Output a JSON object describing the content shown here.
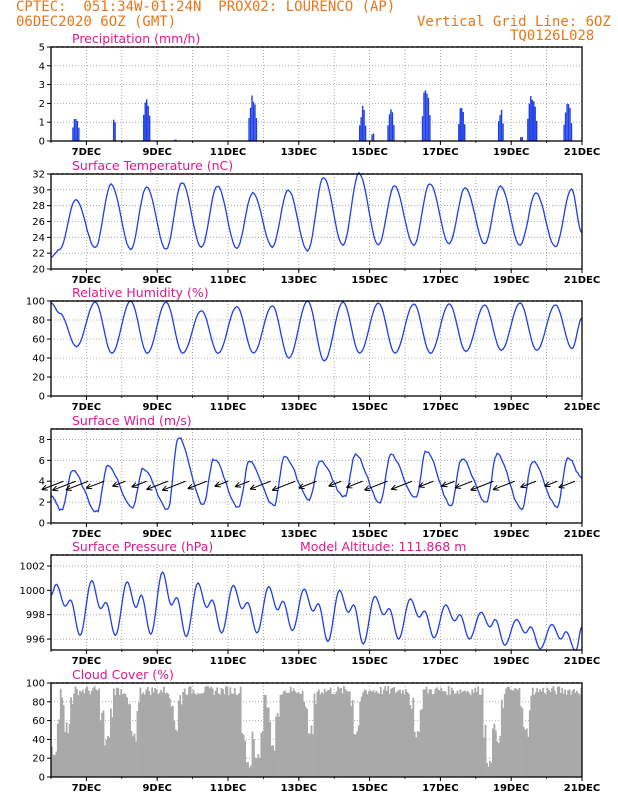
{
  "header": {
    "line1_left": "CPTEC:  051:34W-01:24N  PROX02: LOURENCO (AP)",
    "line2_left": "06DEC2020 6OZ (GMT)",
    "line2_right": "Vertical Grid Line: 6OZ",
    "line3_right": "TQ0126L028",
    "model_altitude": "Model Altitude: 111.868  m"
  },
  "colors": {
    "header": "#e8761a",
    "title": "#e0188c",
    "series": "#1f3fe6",
    "cloud": "#a9a9a9",
    "arrow": "#000000",
    "grid": "#9b9b9b"
  },
  "chart_data": [
    {
      "type": "bar",
      "title": "Precipitation (mm/h)",
      "x_range": [
        "06DEC2020 00Z",
        "21DEC2020 00Z"
      ],
      "x_ticks": [
        "7DEC",
        "9DEC",
        "11DEC",
        "13DEC",
        "15DEC",
        "17DEC",
        "19DEC",
        "21DEC"
      ],
      "ylim": [
        0,
        5
      ],
      "y_ticks": [
        0,
        1,
        2,
        3,
        4,
        5
      ],
      "grid": true,
      "events": [
        {
          "day": 0.7,
          "width": 0.2,
          "peak": 1.5
        },
        {
          "day": 1.8,
          "width": 0.1,
          "peak": 1.6
        },
        {
          "day": 2.7,
          "width": 0.2,
          "peak": 2.6
        },
        {
          "day": 3.5,
          "width": 0.05,
          "peak": 0.1
        },
        {
          "day": 5.7,
          "width": 0.25,
          "peak": 2.7
        },
        {
          "day": 8.8,
          "width": 0.2,
          "peak": 1.9
        },
        {
          "day": 9.1,
          "width": 0.1,
          "peak": 0.5
        },
        {
          "day": 9.6,
          "width": 0.2,
          "peak": 1.9
        },
        {
          "day": 10.6,
          "width": 0.25,
          "peak": 3.2
        },
        {
          "day": 11.6,
          "width": 0.2,
          "peak": 2.1
        },
        {
          "day": 12.7,
          "width": 0.15,
          "peak": 1.8
        },
        {
          "day": 13.3,
          "width": 0.1,
          "peak": 0.3
        },
        {
          "day": 13.6,
          "width": 0.3,
          "peak": 2.8
        },
        {
          "day": 14.6,
          "width": 0.25,
          "peak": 2.2
        }
      ]
    },
    {
      "type": "line",
      "title": "Surface Temperature (nC)",
      "x_range": [
        "06DEC2020 00Z",
        "21DEC2020 00Z"
      ],
      "x_ticks": [
        "7DEC",
        "9DEC",
        "11DEC",
        "13DEC",
        "15DEC",
        "17DEC",
        "19DEC",
        "21DEC"
      ],
      "ylim": [
        20,
        32
      ],
      "y_ticks": [
        20,
        22,
        24,
        26,
        28,
        30,
        32
      ],
      "grid": true,
      "start_value": 21.5,
      "daily": [
        {
          "max": 28.8,
          "min": 22.5
        },
        {
          "max": 30.7,
          "min": 22.7
        },
        {
          "max": 30.4,
          "min": 22.5
        },
        {
          "max": 30.9,
          "min": 22.5
        },
        {
          "max": 30.5,
          "min": 22.8
        },
        {
          "max": 29.6,
          "min": 22.6
        },
        {
          "max": 30.0,
          "min": 22.8
        },
        {
          "max": 31.6,
          "min": 22.3
        },
        {
          "max": 32.1,
          "min": 23.0
        },
        {
          "max": 30.5,
          "min": 23.0
        },
        {
          "max": 30.8,
          "min": 23.0
        },
        {
          "max": 30.3,
          "min": 23.2
        },
        {
          "max": 30.5,
          "min": 23.2
        },
        {
          "max": 29.6,
          "min": 23.0
        },
        {
          "max": 30.1,
          "min": 22.8
        }
      ],
      "end_value": 24.6
    },
    {
      "type": "line",
      "title": "Relative Humidity (%)",
      "x_range": [
        "06DEC2020 00Z",
        "21DEC2020 00Z"
      ],
      "x_ticks": [
        "7DEC",
        "9DEC",
        "11DEC",
        "13DEC",
        "15DEC",
        "17DEC",
        "19DEC",
        "21DEC"
      ],
      "ylim": [
        0,
        100
      ],
      "y_ticks": [
        0,
        20,
        40,
        60,
        80,
        100
      ],
      "grid": true,
      "start_value": 98,
      "daily": [
        {
          "min": 52,
          "max": 87
        },
        {
          "min": 45,
          "max": 99
        },
        {
          "min": 45,
          "max": 100
        },
        {
          "min": 45,
          "max": 99
        },
        {
          "min": 45,
          "max": 90
        },
        {
          "min": 45,
          "max": 94
        },
        {
          "min": 40,
          "max": 95
        },
        {
          "min": 37,
          "max": 100
        },
        {
          "min": 45,
          "max": 99
        },
        {
          "min": 45,
          "max": 98
        },
        {
          "min": 45,
          "max": 97
        },
        {
          "min": 47,
          "max": 97
        },
        {
          "min": 48,
          "max": 96
        },
        {
          "min": 48,
          "max": 98
        },
        {
          "min": 50,
          "max": 96
        }
      ],
      "end_value": 82
    },
    {
      "type": "line",
      "title": "Surface Wind (m/s)",
      "x_range": [
        "06DEC2020 00Z",
        "21DEC2020 00Z"
      ],
      "x_ticks": [
        "7DEC",
        "9DEC",
        "11DEC",
        "13DEC",
        "15DEC",
        "17DEC",
        "19DEC",
        "21DEC"
      ],
      "ylim": [
        0,
        9
      ],
      "y_ticks": [
        0,
        2,
        4,
        6,
        8
      ],
      "grid": true,
      "start_value": 2.6,
      "daily": [
        {
          "min": 1.2,
          "max": 5.0
        },
        {
          "min": 1.1,
          "max": 5.5
        },
        {
          "min": 1.5,
          "max": 5.2
        },
        {
          "min": 1.3,
          "max": 8.2
        },
        {
          "min": 1.8,
          "max": 6.1
        },
        {
          "min": 1.5,
          "max": 5.9
        },
        {
          "min": 1.7,
          "max": 6.3
        },
        {
          "min": 2.3,
          "max": 6.0
        },
        {
          "min": 2.5,
          "max": 6.5
        },
        {
          "min": 2.0,
          "max": 6.5
        },
        {
          "min": 2.4,
          "max": 6.9
        },
        {
          "min": 1.7,
          "max": 6.1
        },
        {
          "min": 2.0,
          "max": 6.6
        },
        {
          "min": 1.3,
          "max": 5.9
        },
        {
          "min": 1.6,
          "max": 6.3
        }
      ],
      "end_value": 4.3,
      "wind_arrow_times": [
        0.35,
        0.7,
        1.05,
        1.5,
        2.1,
        2.7,
        3.3,
        3.8,
        4.4,
        5.0,
        5.6,
        6.2,
        6.9,
        7.5,
        8.2,
        8.8,
        9.5,
        10.2,
        10.8,
        11.4,
        11.9,
        12.5,
        13.1,
        13.7,
        14.3,
        14.8
      ],
      "wind_arrow_y": 4.0,
      "wind_direction": "from north-east"
    },
    {
      "type": "line",
      "title": "Surface Pressure (hPa)",
      "x_range": [
        "06DEC2020 00Z",
        "21DEC2020 00Z"
      ],
      "x_ticks": [
        "7DEC",
        "9DEC",
        "11DEC",
        "13DEC",
        "15DEC",
        "17DEC",
        "19DEC",
        "21DEC"
      ],
      "ylim": [
        995.1,
        1002.9
      ],
      "y_ticks": [
        996,
        998,
        1000,
        1002
      ],
      "grid": true,
      "start_value": 999.6,
      "daily_waves": [
        {
          "max": 1000.5,
          "mid_low": 998.7,
          "mid_high": 999.2,
          "low": 996.3
        },
        {
          "max": 1000.8,
          "mid_low": 998.5,
          "mid_high": 999.0,
          "low": 996.3
        },
        {
          "max": 1000.7,
          "mid_low": 998.6,
          "mid_high": 999.6,
          "low": 996.4
        },
        {
          "max": 1001.5,
          "mid_low": 998.8,
          "mid_high": 999.4,
          "low": 996.2
        },
        {
          "max": 1000.6,
          "mid_low": 998.6,
          "mid_high": 999.2,
          "low": 996.5
        },
        {
          "max": 1000.4,
          "mid_low": 998.5,
          "mid_high": 999.0,
          "low": 996.5
        },
        {
          "max": 1000.3,
          "mid_low": 998.4,
          "mid_high": 999.1,
          "low": 996.7
        },
        {
          "max": 1000.1,
          "mid_low": 998.3,
          "mid_high": 998.9,
          "low": 995.8
        },
        {
          "max": 1000.0,
          "mid_low": 998.2,
          "mid_high": 998.8,
          "low": 995.6
        },
        {
          "max": 999.5,
          "mid_low": 998.0,
          "mid_high": 998.5,
          "low": 996.0
        },
        {
          "max": 999.3,
          "mid_low": 997.8,
          "mid_high": 998.3,
          "low": 996.1
        },
        {
          "max": 998.8,
          "mid_low": 997.5,
          "mid_high": 998.0,
          "low": 996.0
        },
        {
          "max": 998.2,
          "mid_low": 997.0,
          "mid_high": 997.6,
          "low": 995.5
        },
        {
          "max": 997.6,
          "mid_low": 996.5,
          "mid_high": 997.0,
          "low": 995.2
        },
        {
          "max": 997.2,
          "mid_low": 996.0,
          "mid_high": 996.6,
          "low": 995.0
        }
      ]
    },
    {
      "type": "bar",
      "title": "Cloud Cover (%)",
      "x_range": [
        "06DEC2020 00Z",
        "21DEC2020 00Z"
      ],
      "x_ticks": [
        "7DEC",
        "9DEC",
        "11DEC",
        "13DEC",
        "15DEC",
        "17DEC",
        "19DEC",
        "21DEC"
      ],
      "ylim": [
        0,
        100
      ],
      "y_ticks": [
        0,
        20,
        40,
        60,
        80,
        100
      ],
      "grid": true,
      "typical_value": 90,
      "dips": [
        {
          "day": 0.05,
          "value": 20
        },
        {
          "day": 0.45,
          "value": 45
        },
        {
          "day": 1.55,
          "value": 30
        },
        {
          "day": 2.3,
          "value": 35
        },
        {
          "day": 3.5,
          "value": 45
        },
        {
          "day": 5.55,
          "value": 5
        },
        {
          "day": 5.8,
          "value": 10
        },
        {
          "day": 6.25,
          "value": 28
        },
        {
          "day": 7.3,
          "value": 40
        },
        {
          "day": 8.6,
          "value": 40
        },
        {
          "day": 10.3,
          "value": 40
        },
        {
          "day": 12.35,
          "value": 10
        },
        {
          "day": 12.6,
          "value": 35
        },
        {
          "day": 13.4,
          "value": 40
        }
      ]
    }
  ]
}
